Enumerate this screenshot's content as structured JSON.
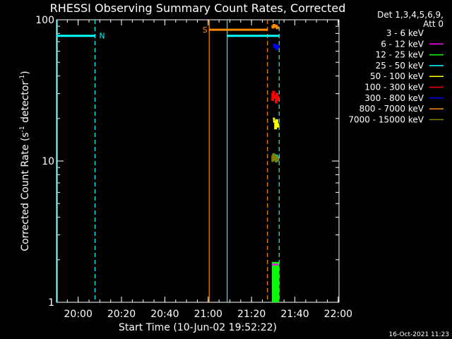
{
  "chart_data": {
    "type": "line",
    "title": "RHESSI Observing Summary Count Rates, Corrected",
    "ylabel_main": "Corrected Count Rate (s",
    "ylabel_sup1": "-1",
    "ylabel_mid": " detector",
    "ylabel_sup2": "-1",
    "ylabel_end": ")",
    "xlabel": "Start Time (10-Jun-02 19:52:22)",
    "yscale": "log",
    "ylim": [
      1,
      100
    ],
    "xlim_minutes": [
      -2.37,
      128.0
    ],
    "yticks": [
      {
        "value": 1,
        "label": "1"
      },
      {
        "value": 10,
        "label": "10"
      },
      {
        "value": 100,
        "label": "100"
      }
    ],
    "xticks": [
      {
        "value": 7.63,
        "label": "20:00"
      },
      {
        "value": 27.63,
        "label": "20:20"
      },
      {
        "value": 47.63,
        "label": "20:40"
      },
      {
        "value": 67.63,
        "label": "21:00"
      },
      {
        "value": 87.63,
        "label": "21:20"
      },
      {
        "value": 107.63,
        "label": "21:40"
      },
      {
        "value": 127.63,
        "label": "22:00"
      }
    ],
    "header_det": "Det 1,3,4,5,6,9,",
    "header_att": "Att 0",
    "legend": [
      {
        "label": "3 - 6 keV",
        "color": "#000000"
      },
      {
        "label": "6 - 12 keV",
        "color": "#ff00ff"
      },
      {
        "label": "12 - 25 keV",
        "color": "#00ff00"
      },
      {
        "label": "25 - 50 keV",
        "color": "#00ffff"
      },
      {
        "label": "50 - 100 keV",
        "color": "#ffff00"
      },
      {
        "label": "100 - 300 keV",
        "color": "#ff0000"
      },
      {
        "label": "300 - 800 keV",
        "color": "#0000ff"
      },
      {
        "label": "800 - 7000 keV",
        "color": "#ff8c00"
      },
      {
        "label": "7000 - 15000 keV",
        "color": "#808000"
      }
    ],
    "flags": [
      {
        "label": "N",
        "color": "#00ffff",
        "y": 77,
        "start": -2.37,
        "end": 15.4
      },
      {
        "label": "S",
        "color": "#ff8c00",
        "y": 85,
        "start": 68.1,
        "end": 95.0
      },
      {
        "label": "",
        "color": "#00ffff",
        "y": 77,
        "start": 76.4,
        "end": 100.4
      }
    ],
    "vlines": [
      {
        "x": -2.0,
        "color": "#00ffff",
        "style": "solid"
      },
      {
        "x": 15.4,
        "color": "#00ffff",
        "style": "dashed"
      },
      {
        "x": 68.1,
        "color": "#ff8c00",
        "style": "solid"
      },
      {
        "x": 76.4,
        "color": "#00ffff",
        "style": "solid"
      },
      {
        "x": 95.0,
        "color": "#ff8c00",
        "style": "dashed"
      },
      {
        "x": 100.4,
        "color": "#00ffff",
        "style": "dashed"
      }
    ],
    "series": [
      {
        "color": "#00ff00",
        "x": [
          97.0,
          97.5,
          98.0,
          98.5,
          99.0,
          99.5,
          100.0,
          100.3
        ],
        "y": [
          1.9,
          1.9,
          1.9,
          1.9,
          1.9,
          1.9,
          1.9,
          1.9
        ]
      },
      {
        "color": "#ff00ff",
        "x": [
          97.0,
          97.5,
          98.0,
          98.5,
          99.0,
          99.5,
          100.0
        ],
        "y": [
          1.85,
          1.85,
          1.85,
          1.85,
          1.85,
          1.85,
          1.85
        ]
      },
      {
        "color": "#00ffff",
        "x": [
          97.0,
          97.4,
          97.8,
          98.2,
          98.6,
          99.0,
          99.4,
          99.8,
          100.2
        ],
        "y": [
          10.5,
          10.8,
          10.2,
          11.0,
          10.3,
          10.9,
          10.1,
          10.6,
          10.4
        ]
      },
      {
        "color": "#ffff00",
        "x": [
          97.5,
          98.0,
          98.5,
          99.0,
          99.5,
          100.0
        ],
        "y": [
          20,
          19,
          17,
          19.5,
          17.5,
          18.5
        ]
      },
      {
        "color": "#ff0000",
        "x": [
          96.8,
          97.2,
          97.6,
          98.0,
          98.4,
          98.8,
          99.2,
          99.6,
          100.0
        ],
        "y": [
          30,
          27,
          31,
          28,
          29,
          26,
          30,
          27,
          29
        ]
      },
      {
        "color": "#0000ff",
        "x": [
          97.5,
          98.0,
          98.5,
          99.0,
          99.5,
          100.0
        ],
        "y": [
          67,
          64,
          66,
          62,
          65,
          63
        ]
      },
      {
        "color": "#ff8c00",
        "x": [
          96.8,
          97.3,
          97.8,
          98.3,
          98.8,
          99.3,
          99.8
        ],
        "y": [
          90,
          88,
          92,
          89,
          91,
          87,
          90
        ]
      },
      {
        "color": "#808000",
        "x": [
          96.8,
          97.2,
          97.6,
          98.0,
          98.4,
          98.8,
          99.2,
          99.6,
          100.0
        ],
        "y": [
          10.8,
          10.0,
          11.2,
          10.3,
          10.9,
          9.9,
          10.7,
          10.2,
          10.5
        ]
      }
    ],
    "green_block": {
      "color": "#00ff00",
      "start": 97.0,
      "end": 100.4,
      "top": 1.9
    }
  },
  "footer_date": "16-Oct-2021 11:23"
}
